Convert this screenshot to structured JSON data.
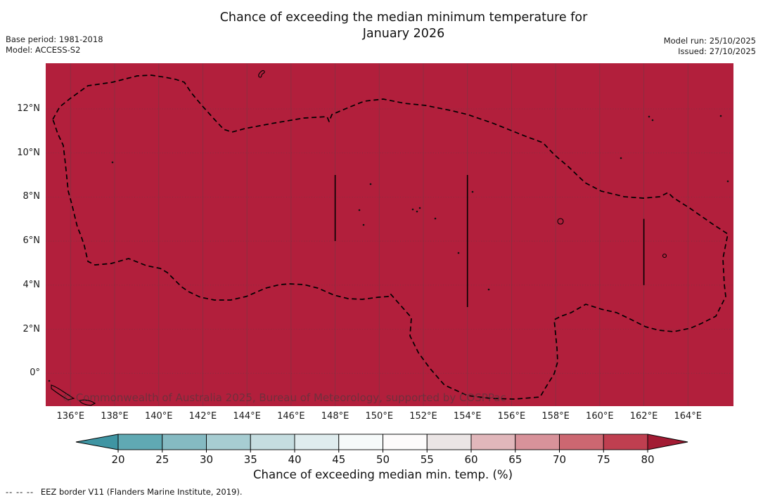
{
  "title": {
    "line1": "Chance of exceeding the median minimum temperature for",
    "line2": "January 2026"
  },
  "meta_left": {
    "base_period": "Base period: 1981-2018",
    "model": "Model: ACCESS-S2"
  },
  "meta_right": {
    "model_run": "Model run: 25/10/2025",
    "issued": "Issued: 27/10/2025"
  },
  "map": {
    "fill_color": "#b21f3c",
    "border_color": "#000000",
    "watermark": "© Commonwealth of Australia 2025, Bureau of Meteorology, supported by COSPPac",
    "x_ticks": [
      "136°E",
      "138°E",
      "140°E",
      "142°E",
      "144°E",
      "146°E",
      "148°E",
      "150°E",
      "152°E",
      "154°E",
      "156°E",
      "158°E",
      "160°E",
      "162°E",
      "164°E"
    ],
    "y_ticks": [
      "12°N",
      "10°N",
      "8°N",
      "6°N",
      "4°N",
      "2°N",
      "0°"
    ]
  },
  "colorbar": {
    "tick_labels": [
      "20",
      "25",
      "30",
      "35",
      "40",
      "45",
      "50",
      "55",
      "60",
      "65",
      "70",
      "75",
      "80"
    ],
    "segment_colors": [
      "#60a9b3",
      "#85bac2",
      "#a7cdd2",
      "#c5dde0",
      "#dfecee",
      "#f6fafa",
      "#fdfbfb",
      "#ebe5e5",
      "#e1b7bb",
      "#d8929a",
      "#cc6771",
      "#bf3f50"
    ],
    "under_color": "#3f95a3",
    "over_color": "#a21b33",
    "label": "Chance of exceeding median min. temp. (%)"
  },
  "footer": {
    "dash_sample": "--  --  --",
    "text": "EEZ border V11 (Flanders Marine Institute, 2019)."
  },
  "chart_data": {
    "type": "heatmap",
    "title": "Chance of exceeding the median minimum temperature for January 2026",
    "x_axis": {
      "label_units": "degrees East",
      "ticks": [
        136,
        138,
        140,
        142,
        144,
        146,
        148,
        150,
        152,
        154,
        156,
        158,
        160,
        162,
        164
      ]
    },
    "y_axis": {
      "label_units": "degrees North",
      "ticks": [
        12,
        10,
        8,
        6,
        4,
        2,
        0
      ]
    },
    "value_field": "Chance of exceeding median min. temp. (%)",
    "observed_value": "greater than 80% uniformly across the displayed EEZ region",
    "colorbar_scale": {
      "min": 20,
      "max": 80,
      "step": 5,
      "units": "%",
      "low_color": "teal",
      "high_color": "crimson"
    }
  }
}
